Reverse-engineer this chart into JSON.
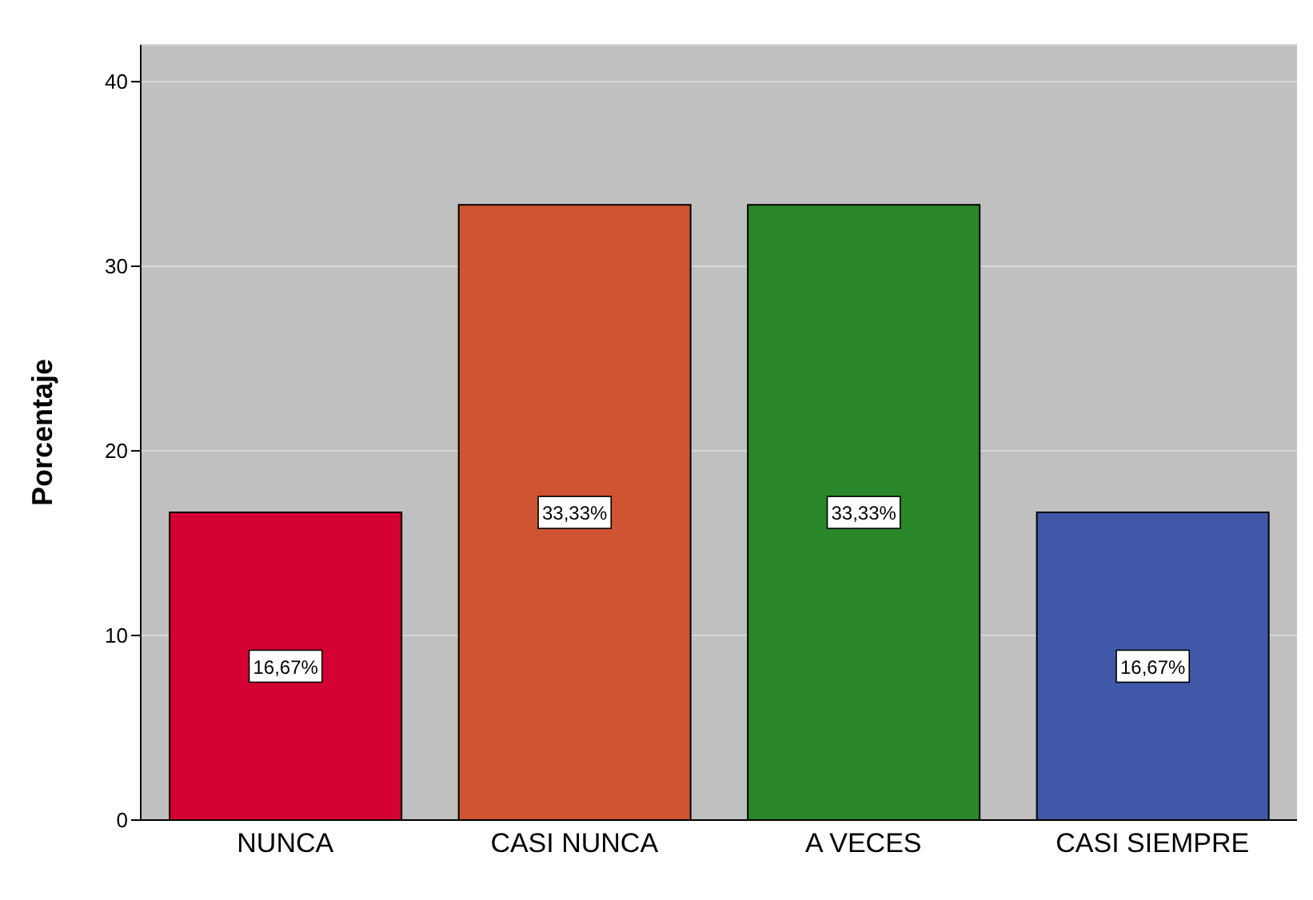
{
  "chart_data": {
    "type": "bar",
    "ylabel": "Porcentaje",
    "categories": [
      "NUNCA",
      "CASI NUNCA",
      "A VECES",
      "CASI SIEMPRE"
    ],
    "values": [
      16.67,
      33.33,
      33.33,
      16.67
    ],
    "colors": [
      "#d50032",
      "#d05332",
      "#2a8729",
      "#3f59a8"
    ],
    "value_labels": [
      "16,67%",
      "33,33%",
      "33,33%",
      "16,67%"
    ],
    "ylim": [
      0,
      42
    ],
    "yticks": [
      0,
      10,
      20,
      30,
      40
    ],
    "grid": "y"
  }
}
